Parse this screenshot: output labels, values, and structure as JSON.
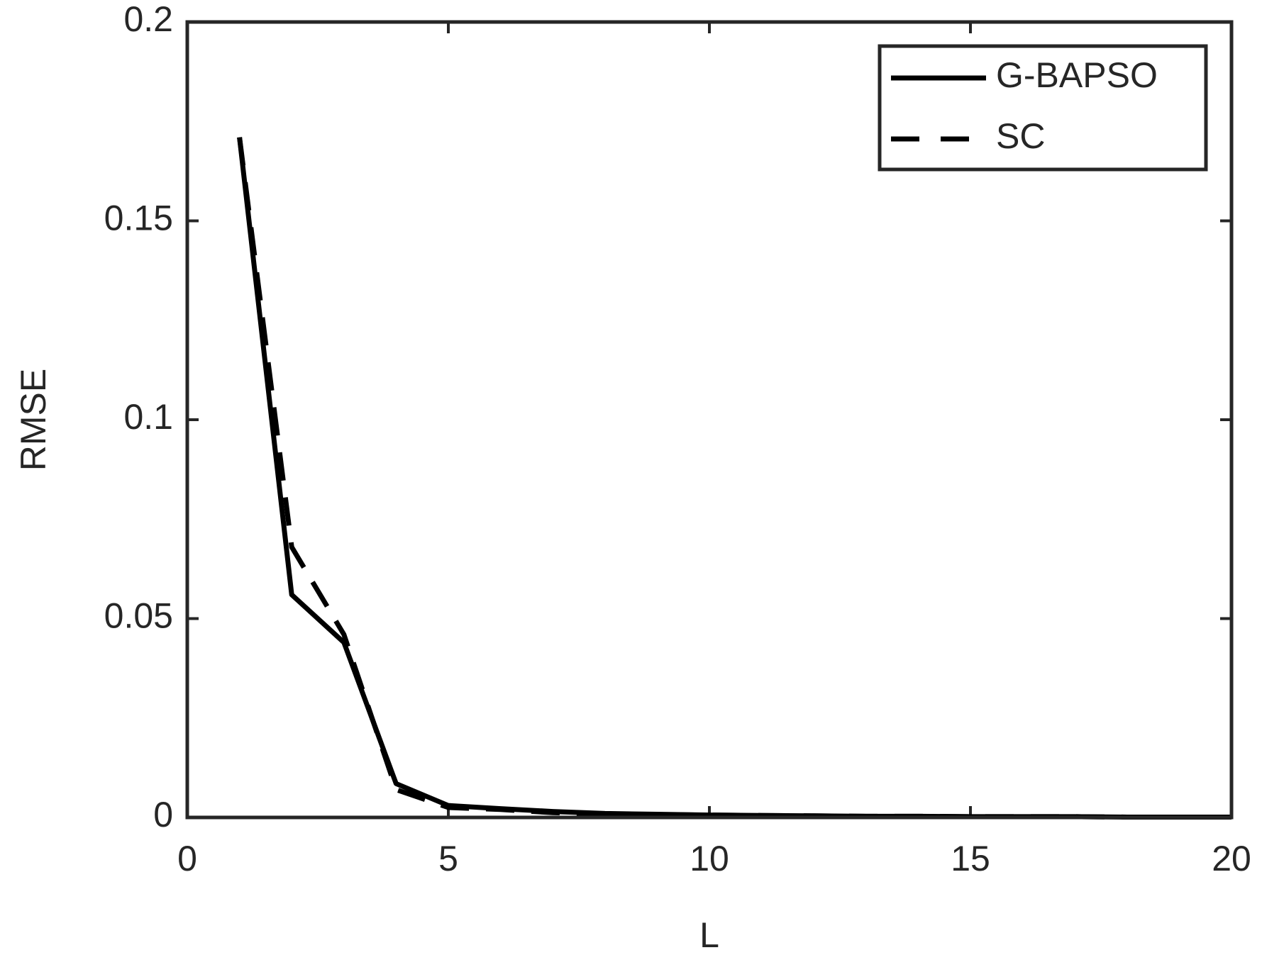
{
  "chart_data": {
    "type": "line",
    "x_label": "L",
    "y_label": "RMSE",
    "x": [
      1,
      2,
      3,
      4,
      5,
      6,
      7,
      8,
      9,
      10,
      11,
      12,
      13,
      14,
      15,
      16,
      17,
      18,
      19,
      20
    ],
    "series": [
      {
        "name": "G-BAPSO",
        "color": "#000000",
        "linestyle": "solid",
        "values": [
          0.171,
          0.056,
          0.044,
          0.0085,
          0.003,
          0.0022,
          0.0015,
          0.001,
          0.0008,
          0.0006,
          0.0005,
          0.0004,
          0.0003,
          0.0003,
          0.0002,
          0.0002,
          0.0002,
          0.0001,
          0.0001,
          0.0001
        ]
      },
      {
        "name": "SC",
        "color": "#000000",
        "linestyle": "dashed",
        "values": [
          0.171,
          0.068,
          0.046,
          0.007,
          0.0025,
          0.002,
          0.0012,
          0.0009,
          0.0007,
          0.0006,
          0.0005,
          0.0004,
          0.0003,
          0.0003,
          0.0002,
          0.0002,
          0.0002,
          0.0001,
          0.0001,
          0.0001
        ]
      }
    ],
    "xlim": [
      0,
      20
    ],
    "xticks": [
      0,
      5,
      10,
      15,
      20
    ],
    "ylim": [
      0,
      0.2
    ],
    "yticks": [
      0,
      0.05,
      0.1,
      0.15,
      0.2
    ],
    "grid": false,
    "legend": "upper right"
  }
}
